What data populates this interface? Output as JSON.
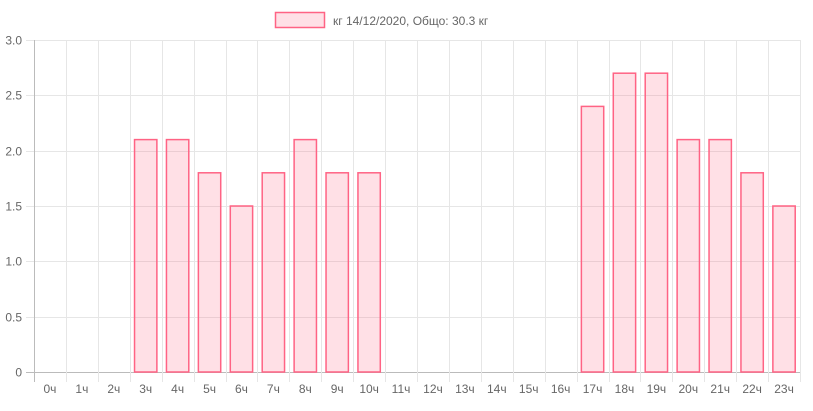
{
  "chart_data": {
    "type": "bar",
    "legend": {
      "label": "кг 14/12/2020, Общо: 30.3 кг",
      "position": "top"
    },
    "categories": [
      "0ч",
      "1ч",
      "2ч",
      "3ч",
      "4ч",
      "5ч",
      "6ч",
      "7ч",
      "8ч",
      "9ч",
      "10ч",
      "11ч",
      "12ч",
      "13ч",
      "14ч",
      "15ч",
      "16ч",
      "17ч",
      "18ч",
      "19ч",
      "20ч",
      "21ч",
      "22ч",
      "23ч"
    ],
    "values": [
      0,
      0,
      0,
      2.1,
      2.1,
      1.8,
      1.5,
      1.8,
      2.1,
      1.8,
      1.8,
      0,
      0,
      0,
      0,
      0,
      0,
      2.4,
      2.7,
      2.7,
      2.1,
      2.1,
      1.8,
      1.5
    ],
    "yticks": [
      "0",
      "0.5",
      "1.0",
      "1.5",
      "2.0",
      "2.5",
      "3.0"
    ],
    "ylim": [
      0,
      3
    ],
    "grid": true,
    "colors": {
      "fill": "#ff638433",
      "border": "#ff6384",
      "grid": "#e6e6e6"
    }
  }
}
